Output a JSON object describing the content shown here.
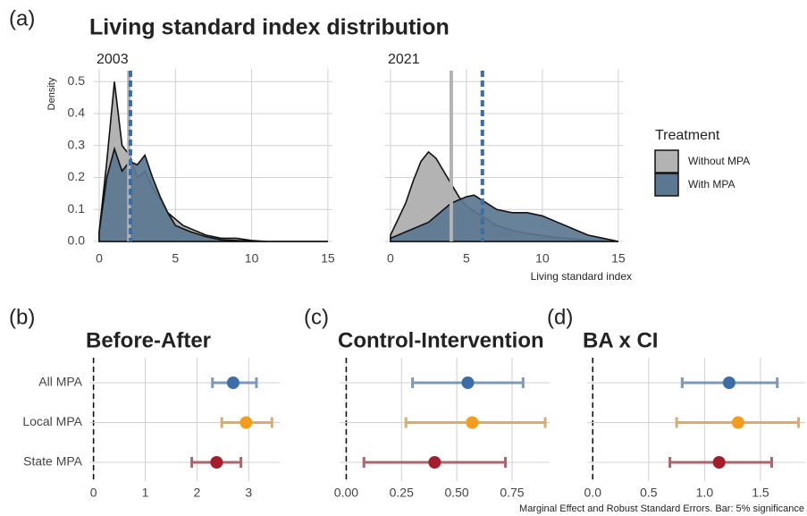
{
  "title": "Living standard index distribution",
  "legend_title": "Treatment",
  "note": "Marginal Effect and Robust Standard Errors. Bar: 5% significance",
  "chart_data": [
    {
      "type": "density",
      "panel": "(a)",
      "title": "2003",
      "ylabel": "Density",
      "x": [
        0,
        0.5,
        1,
        1.5,
        2,
        2.5,
        3,
        3.5,
        4,
        4.5,
        5,
        5.5,
        6,
        7,
        8,
        9,
        10,
        11,
        12,
        13,
        14,
        15
      ],
      "series": [
        {
          "name": "Without MPA",
          "color": "#b3b3b3",
          "mean": 1.95,
          "values": [
            0.03,
            0.25,
            0.5,
            0.3,
            0.27,
            0.2,
            0.22,
            0.17,
            0.13,
            0.09,
            0.07,
            0.05,
            0.04,
            0.02,
            0.01,
            0.01,
            0.003,
            0,
            0,
            0,
            0,
            0
          ]
        },
        {
          "name": "With MPA",
          "color": "#5b7791",
          "mean": 2.05,
          "values": [
            0.03,
            0.2,
            0.29,
            0.22,
            0.25,
            0.24,
            0.27,
            0.2,
            0.14,
            0.09,
            0.05,
            0.04,
            0.03,
            0.015,
            0.005,
            0.003,
            0.001,
            0,
            0,
            0,
            0,
            0
          ]
        }
      ],
      "xlim": [
        -0.35,
        15.3
      ],
      "ylim": [
        0,
        0.54
      ],
      "xticks": [
        0,
        5,
        10,
        15
      ],
      "yticks": [
        {
          "value": 0,
          "label": "0.0"
        },
        0.1,
        0.2,
        0.3,
        0.4,
        0.5
      ],
      "grid": true
    },
    {
      "type": "density",
      "title": "2021",
      "xlabel": "Living standard index",
      "x": [
        0,
        0.5,
        1,
        1.5,
        2,
        2.5,
        3,
        3.5,
        4,
        4.5,
        5,
        5.5,
        6,
        7,
        8,
        9,
        10,
        11,
        12,
        13,
        14,
        15
      ],
      "series": [
        {
          "name": "Without MPA",
          "color": "#b3b3b3",
          "mean": 4.0,
          "values": [
            0.02,
            0.07,
            0.12,
            0.19,
            0.25,
            0.28,
            0.26,
            0.22,
            0.18,
            0.14,
            0.11,
            0.095,
            0.08,
            0.05,
            0.035,
            0.025,
            0.018,
            0.012,
            0.008,
            0.004,
            0.002,
            0
          ]
        },
        {
          "name": "With MPA",
          "color": "#5b7791",
          "mean": 6.05,
          "values": [
            0.01,
            0.02,
            0.03,
            0.04,
            0.05,
            0.06,
            0.08,
            0.1,
            0.12,
            0.13,
            0.14,
            0.145,
            0.13,
            0.1,
            0.09,
            0.09,
            0.08,
            0.06,
            0.04,
            0.02,
            0.01,
            0
          ]
        }
      ],
      "xlim": [
        -0.35,
        15.3
      ],
      "ylim": [
        0,
        0.54
      ],
      "xticks": [
        0,
        5,
        10,
        15
      ],
      "grid": true
    },
    {
      "type": "dotwhisker",
      "panel": "(b)",
      "title": "Before-After",
      "categories": [
        "All MPA",
        "Local MPA",
        "State MPA"
      ],
      "values": [
        2.7,
        2.95,
        2.38
      ],
      "lower": [
        2.3,
        2.48,
        1.9
      ],
      "upper": [
        3.15,
        3.45,
        2.85
      ],
      "colors": [
        "#3b6ea8",
        "#f39c1e",
        "#a51d2d"
      ],
      "whisker_colors": [
        "#7f98b3",
        "#d4ad78",
        "#a86670"
      ],
      "xlim": [
        -0.08,
        3.6
      ],
      "xticks": [
        0,
        1,
        2,
        3
      ],
      "grid": true
    },
    {
      "type": "dotwhisker",
      "panel": "(c)",
      "title": "Control-Intervention",
      "values": [
        0.55,
        0.57,
        0.4
      ],
      "lower": [
        0.3,
        0.27,
        0.08
      ],
      "upper": [
        0.8,
        0.9,
        0.72
      ],
      "colors": [
        "#3b6ea8",
        "#f39c1e",
        "#a51d2d"
      ],
      "whisker_colors": [
        "#7f98b3",
        "#d4ad78",
        "#a86670"
      ],
      "xlim": [
        -0.03,
        0.92
      ],
      "xticks": [
        {
          "value": 0,
          "label": "0.00"
        },
        0.25,
        {
          "value": 0.5,
          "label": "0.50"
        },
        0.75
      ],
      "grid": true
    },
    {
      "type": "dotwhisker",
      "panel": "(d)",
      "title": "BA x CI",
      "values": [
        1.22,
        1.3,
        1.13
      ],
      "lower": [
        0.8,
        0.75,
        0.69
      ],
      "upper": [
        1.65,
        1.84,
        1.6
      ],
      "colors": [
        "#3b6ea8",
        "#f39c1e",
        "#a51d2d"
      ],
      "whisker_colors": [
        "#7f98b3",
        "#d4ad78",
        "#a86670"
      ],
      "xlim": [
        -0.05,
        1.9
      ],
      "xticks": [
        {
          "value": 0,
          "label": "0.0"
        },
        0.5,
        {
          "value": 1,
          "label": "1.0"
        },
        1.5
      ],
      "grid": true
    }
  ]
}
